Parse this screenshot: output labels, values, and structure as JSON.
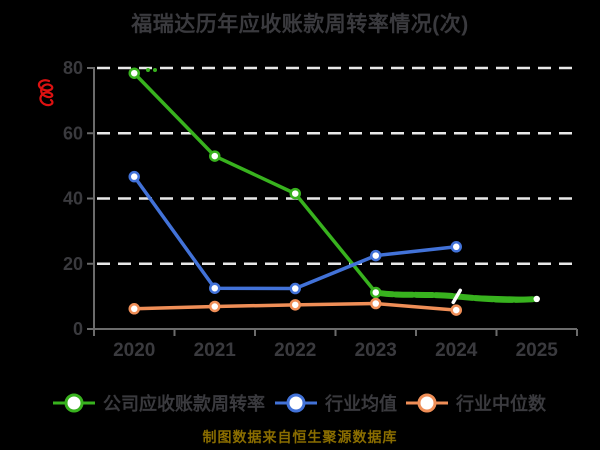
{
  "title": "福瑞达历年应收账款周转率情况(次)",
  "caption": "制图数据来自恒生聚源数据库",
  "colors": {
    "background": "#000000",
    "title_text": "#3a3a3e",
    "tick_text": "#3a3a3e",
    "legend_text": "#3a3a3e",
    "caption_text": "#8a6d00",
    "axis": "#6b6b6b",
    "gridline": "#e8e8e8",
    "marker_fill": "#ffffff",
    "annotation_red": "#dd1111"
  },
  "chart_data": {
    "type": "line",
    "title": "福瑞达历年应收账款周转率情况(次)",
    "categories": [
      "2020",
      "2021",
      "2022",
      "2023",
      "2024",
      "2025"
    ],
    "series": [
      {
        "key": "company-receivables-turnover",
        "name": "公司应收账款周转率",
        "color": "#38b21e",
        "values": [
          78.4,
          53.0,
          41.5,
          11.2,
          10.0,
          9.2
        ]
      },
      {
        "key": "industry-mean",
        "name": "行业均值",
        "color": "#4272d8",
        "values": [
          46.7,
          12.5,
          12.4,
          22.5,
          25.2,
          null
        ]
      },
      {
        "key": "industry-median",
        "name": "行业中位数",
        "color": "#ef8e57",
        "values": [
          6.2,
          6.9,
          7.4,
          7.8,
          5.8,
          null
        ]
      }
    ],
    "ylim": [
      0,
      80
    ],
    "yticks": [
      0,
      20,
      40,
      60,
      80
    ],
    "grid": "horizontal-dashed-white",
    "legend_position": "bottom",
    "annotations": [
      "red-scribble-near-y-axis",
      "hand-drawn-green-overlay-2023-2025",
      "white-slash-marker-2024"
    ]
  }
}
